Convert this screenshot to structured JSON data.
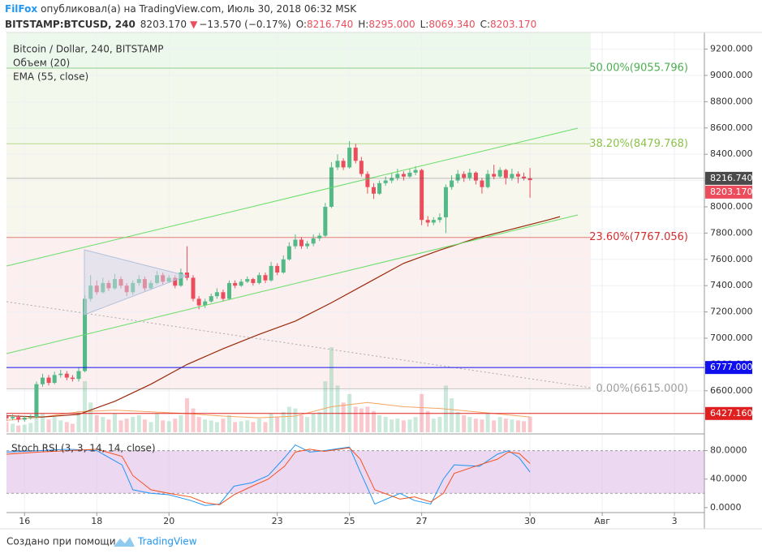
{
  "header": {
    "author": "FilFox",
    "published": "опубликовал(а) на TradingView.com, Июль 30, 2018 06:32 MSK",
    "symbol": "BITSTAMP:BTCUSD, 240",
    "last": "8203.170",
    "arrow": "▼",
    "change": "−13.570 (−0.17%)",
    "ohlc": [
      {
        "label": "O:",
        "value": "8216.740"
      },
      {
        "label": "H:",
        "value": "8295.000"
      },
      {
        "label": "L:",
        "value": "8069.340"
      },
      {
        "label": "C:",
        "value": "8203.170"
      }
    ]
  },
  "chart_data": {
    "type": "candlestick",
    "title": "Bitcoin / Dollar, 240, BITSTAMP",
    "up_color": "#53b987",
    "down_color": "#eb4d5c",
    "grid": true,
    "xlim": [
      15.5,
      34.83
    ],
    "xticks": [
      16,
      18,
      20,
      23,
      25,
      27,
      30,
      {
        "value": 32,
        "label": "Авг"
      },
      {
        "value": 34,
        "label": "3"
      }
    ],
    "ylim": [
      6284,
      9327
    ],
    "yticks": [
      {
        "value": 6600,
        "label": "6600.000"
      },
      {
        "value": 6800,
        "label": "6800.000"
      },
      {
        "value": 7000,
        "label": "7000.000"
      },
      {
        "value": 7200,
        "label": "7200.000"
      },
      {
        "value": 7400,
        "label": "7400.000"
      },
      {
        "value": 7600,
        "label": "7600.000"
      },
      {
        "value": 7800,
        "label": "7800.000"
      },
      {
        "value": 8000,
        "label": "8000.000"
      },
      {
        "value": 8200,
        "label": "8200.000"
      },
      {
        "value": 8400,
        "label": "8400.000"
      },
      {
        "value": 8600,
        "label": "8600.000"
      },
      {
        "value": 8800,
        "label": "8800.000"
      },
      {
        "value": 9000,
        "label": "9000.000"
      },
      {
        "value": 9200,
        "label": "9200.000"
      }
    ],
    "x": [
      15.5,
      15.67,
      15.83,
      16,
      16.17,
      16.33,
      16.5,
      16.67,
      16.83,
      17,
      17.17,
      17.33,
      17.5,
      17.67,
      17.83,
      18,
      18.17,
      18.33,
      18.5,
      18.67,
      18.83,
      19,
      19.17,
      19.33,
      19.5,
      19.67,
      19.83,
      20,
      20.17,
      20.33,
      20.5,
      20.67,
      20.83,
      21,
      21.17,
      21.33,
      21.5,
      21.67,
      21.83,
      22,
      22.17,
      22.33,
      22.5,
      22.67,
      22.83,
      23,
      23.17,
      23.33,
      23.5,
      23.67,
      23.83,
      24,
      24.17,
      24.33,
      24.5,
      24.67,
      24.83,
      25,
      25.17,
      25.33,
      25.5,
      25.67,
      25.83,
      26,
      26.17,
      26.33,
      26.5,
      26.67,
      26.83,
      27,
      27.17,
      27.33,
      27.5,
      27.67,
      27.83,
      28,
      28.17,
      28.33,
      28.5,
      28.67,
      28.83,
      29,
      29.17,
      29.33,
      29.5,
      29.67,
      29.83,
      30
    ],
    "candles": [
      [
        6410,
        6430,
        6370,
        6390
      ],
      [
        6390,
        6420,
        6375,
        6400
      ],
      [
        6400,
        6415,
        6360,
        6380
      ],
      [
        6380,
        6410,
        6365,
        6395
      ],
      [
        6395,
        6420,
        6380,
        6400
      ],
      [
        6400,
        6670,
        6390,
        6650
      ],
      [
        6650,
        6730,
        6630,
        6700
      ],
      [
        6700,
        6720,
        6640,
        6660
      ],
      [
        6660,
        6745,
        6650,
        6720
      ],
      [
        6720,
        6760,
        6700,
        6730
      ],
      [
        6730,
        6750,
        6680,
        6700
      ],
      [
        6700,
        6720,
        6670,
        6690
      ],
      [
        6690,
        6780,
        6670,
        6750
      ],
      [
        6750,
        7330,
        6740,
        7300
      ],
      [
        7300,
        7480,
        7280,
        7400
      ],
      [
        7400,
        7440,
        7330,
        7350
      ],
      [
        7350,
        7460,
        7340,
        7420
      ],
      [
        7420,
        7440,
        7360,
        7380
      ],
      [
        7380,
        7490,
        7370,
        7450
      ],
      [
        7450,
        7470,
        7380,
        7400
      ],
      [
        7400,
        7420,
        7320,
        7350
      ],
      [
        7350,
        7440,
        7330,
        7420
      ],
      [
        7420,
        7480,
        7400,
        7450
      ],
      [
        7450,
        7470,
        7360,
        7380
      ],
      [
        7380,
        7440,
        7370,
        7420
      ],
      [
        7420,
        7510,
        7410,
        7480
      ],
      [
        7480,
        7500,
        7410,
        7430
      ],
      [
        7430,
        7480,
        7420,
        7460
      ],
      [
        7460,
        7480,
        7380,
        7400
      ],
      [
        7400,
        7530,
        7390,
        7500
      ],
      [
        7500,
        7700,
        7440,
        7460
      ],
      [
        7460,
        7480,
        7280,
        7300
      ],
      [
        7300,
        7320,
        7220,
        7250
      ],
      [
        7250,
        7300,
        7230,
        7280
      ],
      [
        7280,
        7340,
        7270,
        7320
      ],
      [
        7320,
        7380,
        7300,
        7350
      ],
      [
        7350,
        7370,
        7280,
        7300
      ],
      [
        7300,
        7440,
        7290,
        7420
      ],
      [
        7420,
        7440,
        7380,
        7400
      ],
      [
        7400,
        7450,
        7390,
        7430
      ],
      [
        7430,
        7470,
        7420,
        7450
      ],
      [
        7450,
        7460,
        7400,
        7420
      ],
      [
        7420,
        7500,
        7410,
        7480
      ],
      [
        7480,
        7500,
        7420,
        7440
      ],
      [
        7440,
        7580,
        7430,
        7550
      ],
      [
        7550,
        7570,
        7480,
        7500
      ],
      [
        7500,
        7630,
        7490,
        7600
      ],
      [
        7600,
        7730,
        7590,
        7700
      ],
      [
        7700,
        7790,
        7680,
        7750
      ],
      [
        7750,
        7770,
        7680,
        7700
      ],
      [
        7700,
        7740,
        7680,
        7720
      ],
      [
        7720,
        7790,
        7700,
        7760
      ],
      [
        7760,
        7800,
        7740,
        7780
      ],
      [
        7780,
        8030,
        7770,
        8000
      ],
      [
        8000,
        8340,
        7990,
        8300
      ],
      [
        8300,
        8400,
        8280,
        8350
      ],
      [
        8350,
        8370,
        8280,
        8300
      ],
      [
        8300,
        8500,
        8290,
        8450
      ],
      [
        8450,
        8480,
        8330,
        8350
      ],
      [
        8350,
        8380,
        8230,
        8250
      ],
      [
        8250,
        8270,
        8100,
        8150
      ],
      [
        8150,
        8180,
        8060,
        8100
      ],
      [
        8100,
        8200,
        8090,
        8180
      ],
      [
        8180,
        8230,
        8160,
        8200
      ],
      [
        8200,
        8260,
        8180,
        8220
      ],
      [
        8220,
        8290,
        8200,
        8250
      ],
      [
        8250,
        8270,
        8200,
        8230
      ],
      [
        8230,
        8290,
        8220,
        8260
      ],
      [
        8260,
        8310,
        8240,
        8280
      ],
      [
        8280,
        8290,
        7860,
        7900
      ],
      [
        7900,
        7930,
        7850,
        7880
      ],
      [
        7880,
        7920,
        7860,
        7900
      ],
      [
        7900,
        7950,
        7880,
        7920
      ],
      [
        7920,
        8170,
        7800,
        8150
      ],
      [
        8150,
        8240,
        8130,
        8200
      ],
      [
        8200,
        8280,
        8180,
        8250
      ],
      [
        8250,
        8270,
        8190,
        8220
      ],
      [
        8220,
        8290,
        8200,
        8260
      ],
      [
        8260,
        8270,
        8170,
        8200
      ],
      [
        8200,
        8220,
        8100,
        8150
      ],
      [
        8150,
        8280,
        8140,
        8250
      ],
      [
        8250,
        8320,
        8210,
        8230
      ],
      [
        8230,
        8300,
        8220,
        8280
      ],
      [
        8280,
        8290,
        8170,
        8220
      ],
      [
        8220,
        8290,
        8200,
        8250
      ],
      [
        8250,
        8270,
        8180,
        8230
      ],
      [
        8230,
        8260,
        8200,
        8216.74
      ],
      [
        8216.74,
        8295,
        8069.34,
        8203.17
      ]
    ],
    "volume": {
      "name": "Объем (20)",
      "values": [
        12,
        10,
        8,
        9,
        11,
        50,
        22,
        15,
        18,
        14,
        12,
        10,
        25,
        60,
        35,
        20,
        18,
        15,
        22,
        14,
        16,
        18,
        20,
        15,
        12,
        22,
        14,
        13,
        16,
        20,
        40,
        28,
        18,
        15,
        14,
        12,
        16,
        20,
        12,
        13,
        14,
        12,
        16,
        12,
        22,
        18,
        24,
        30,
        28,
        20,
        18,
        22,
        24,
        60,
        100,
        55,
        35,
        45,
        30,
        28,
        30,
        25,
        20,
        18,
        15,
        16,
        14,
        15,
        18,
        45,
        25,
        16,
        18,
        55,
        40,
        24,
        20,
        18,
        16,
        15,
        22,
        14,
        18,
        16,
        15,
        14,
        13,
        18
      ],
      "ma_x": [
        15.5,
        16.5,
        17.5,
        18.5,
        19.5,
        20.5,
        21.5,
        22.5,
        23.5,
        24.5,
        25.5,
        26.5,
        27.5,
        28.5,
        29.5,
        30
      ],
      "ma": [
        14,
        18,
        24,
        26,
        24,
        22,
        19,
        17,
        19,
        30,
        35,
        30,
        28,
        24,
        20,
        18
      ],
      "ma_color": "#f4a460"
    },
    "ema": {
      "name": "EMA (55, close)",
      "color": "#9a2a0a",
      "x": [
        15.5,
        16.5,
        17.5,
        18.5,
        19.5,
        20.5,
        21.5,
        22.5,
        23.5,
        24.5,
        25.5,
        26.5,
        27.5,
        28.5,
        29.5,
        30.5,
        30.83
      ],
      "values": [
        6410,
        6400,
        6420,
        6520,
        6650,
        6800,
        6920,
        7030,
        7130,
        7270,
        7420,
        7570,
        7670,
        7760,
        7830,
        7900,
        7925
      ]
    },
    "fib_levels": [
      {
        "value": 9055.796,
        "label": "50.00%(9055.796)",
        "color": "#4caf50"
      },
      {
        "value": 8479.768,
        "label": "38.20%(8479.768)",
        "color": "#8bc34a"
      },
      {
        "value": 7767.056,
        "label": "23.60%(7767.056)",
        "color": "#d32f2f"
      },
      {
        "value": 6615.0,
        "label": "0.00%(6615.000)",
        "color": "#9e9e9e"
      }
    ],
    "price_lines": [
      {
        "value": 8216.74,
        "label": "8216.740",
        "color": "#4a4a4a",
        "line": true
      },
      {
        "value": 8203.17,
        "label": "8203.170",
        "color": "#eb4d5c",
        "line": false
      },
      {
        "value": 6777.0,
        "label": "6777.000",
        "color": "#1010ee",
        "line": true
      },
      {
        "value": 6427.16,
        "label": "6427.160",
        "color": "#e02020",
        "line": true
      }
    ],
    "stoch": {
      "name": "Stoch RSI (3, 3, 14, 14, close)",
      "ylim": [
        -7,
        101.2
      ],
      "yticks": [
        {
          "value": 0,
          "label": "0.0000"
        },
        {
          "value": 40,
          "label": "40.0000"
        },
        {
          "value": 80,
          "label": "80.0000"
        }
      ],
      "band": [
        20,
        80
      ],
      "band_color": "#e1bee7",
      "x": [
        15.5,
        16.4,
        17.2,
        18,
        18.7,
        19,
        19.5,
        20,
        20.6,
        21,
        21.4,
        21.8,
        22.3,
        22.75,
        23.2,
        23.5,
        23.9,
        24.3,
        25,
        25.3,
        25.7,
        26.4,
        26.8,
        27.25,
        27.6,
        27.9,
        28.6,
        29.1,
        29.4,
        29.7,
        30
      ],
      "series": [
        {
          "color": "#2196f3",
          "values": [
            78,
            80,
            82,
            80,
            60,
            25,
            20,
            18,
            10,
            3,
            5,
            30,
            35,
            45,
            70,
            88,
            78,
            80,
            85,
            50,
            5,
            20,
            10,
            5,
            40,
            60,
            58,
            75,
            80,
            70,
            50
          ]
        },
        {
          "color": "#f4511e",
          "values": [
            75,
            78,
            80,
            82,
            72,
            45,
            25,
            20,
            15,
            7,
            4,
            18,
            30,
            40,
            58,
            78,
            82,
            79,
            84,
            68,
            25,
            12,
            15,
            8,
            20,
            48,
            60,
            68,
            78,
            76,
            62
          ]
        }
      ]
    }
  },
  "footer": {
    "text": "Создано при помощи",
    "brand": "TradingView"
  }
}
